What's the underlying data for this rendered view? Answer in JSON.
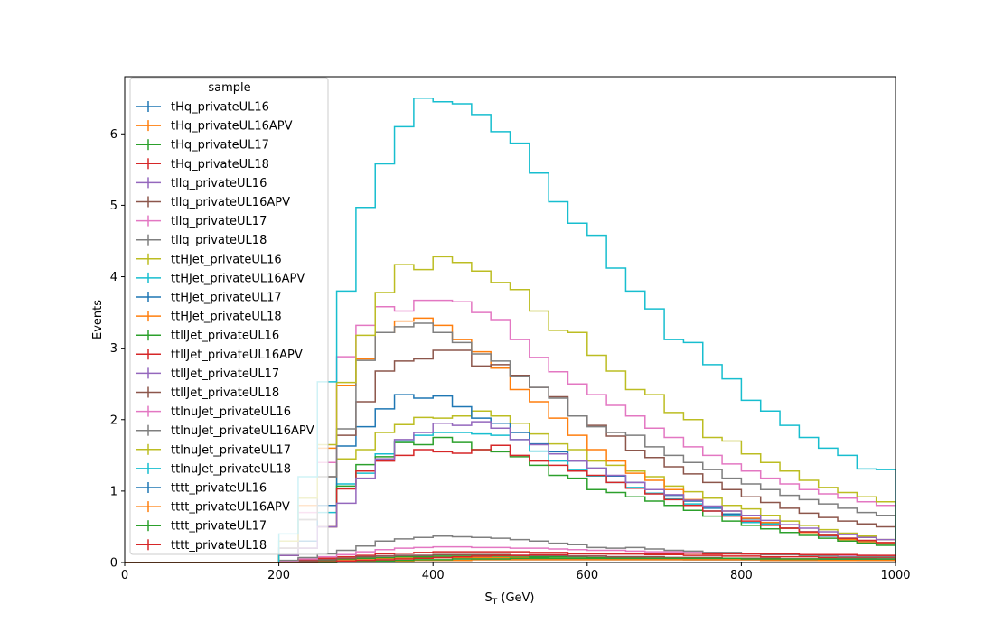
{
  "chart_data": {
    "type": "line",
    "xlabel_main": "S",
    "xlabel_sub": "T",
    "xlabel_rest": " (GeV)",
    "ylabel": "Events",
    "xlim": [
      0,
      1000
    ],
    "ylim": [
      0,
      6.8
    ],
    "xticks": [
      0,
      200,
      400,
      600,
      800,
      1000
    ],
    "yticks": [
      0,
      1,
      2,
      3,
      4,
      5,
      6
    ],
    "grid": false,
    "legend_title": "sample",
    "legend_position": "upper-left",
    "bin_edges": [
      0,
      25,
      50,
      75,
      100,
      125,
      150,
      175,
      200,
      225,
      250,
      275,
      300,
      325,
      350,
      375,
      400,
      425,
      450,
      475,
      500,
      525,
      550,
      575,
      600,
      625,
      650,
      675,
      700,
      725,
      750,
      775,
      800,
      825,
      850,
      875,
      900,
      925,
      950,
      975,
      1000
    ],
    "series": [
      {
        "name": "tHq_privateUL16",
        "color": "#1f77b4",
        "values": [
          0,
          0,
          0,
          0,
          0,
          0,
          0,
          0,
          0.01,
          0.02,
          0.03,
          0.04,
          0.05,
          0.06,
          0.06,
          0.07,
          0.07,
          0.07,
          0.07,
          0.07,
          0.07,
          0.07,
          0.06,
          0.06,
          0.06,
          0.05,
          0.05,
          0.05,
          0.05,
          0.04,
          0.04,
          0.04,
          0.04,
          0.03,
          0.03,
          0.03,
          0.03,
          0.03,
          0.03,
          0.03
        ]
      },
      {
        "name": "tHq_privateUL16APV",
        "color": "#ff7f0e",
        "values": [
          0,
          0,
          0,
          0,
          0,
          0,
          0,
          0,
          0.01,
          0.02,
          0.03,
          0.04,
          0.05,
          0.06,
          0.06,
          0.07,
          0.07,
          0.07,
          0.07,
          0.07,
          0.07,
          0.06,
          0.06,
          0.06,
          0.06,
          0.05,
          0.05,
          0.05,
          0.05,
          0.04,
          0.04,
          0.04,
          0.04,
          0.03,
          0.03,
          0.03,
          0.03,
          0.03,
          0.03,
          0.03
        ]
      },
      {
        "name": "tHq_privateUL17",
        "color": "#2ca02c",
        "values": [
          0,
          0,
          0,
          0,
          0,
          0,
          0,
          0,
          0.01,
          0.02,
          0.03,
          0.05,
          0.06,
          0.07,
          0.08,
          0.08,
          0.09,
          0.09,
          0.09,
          0.09,
          0.09,
          0.08,
          0.08,
          0.08,
          0.07,
          0.07,
          0.07,
          0.06,
          0.06,
          0.06,
          0.05,
          0.05,
          0.05,
          0.05,
          0.04,
          0.04,
          0.04,
          0.04,
          0.04,
          0.04
        ]
      },
      {
        "name": "tHq_privateUL18",
        "color": "#d62728",
        "values": [
          0,
          0,
          0,
          0,
          0,
          0,
          0,
          0,
          0.02,
          0.04,
          0.06,
          0.08,
          0.1,
          0.12,
          0.13,
          0.14,
          0.15,
          0.15,
          0.15,
          0.15,
          0.15,
          0.14,
          0.14,
          0.13,
          0.13,
          0.12,
          0.12,
          0.11,
          0.11,
          0.1,
          0.1,
          0.09,
          0.09,
          0.08,
          0.08,
          0.08,
          0.07,
          0.07,
          0.07,
          0.07
        ]
      },
      {
        "name": "tllq_privateUL16",
        "color": "#9467bd",
        "values": [
          0,
          0,
          0,
          0,
          0,
          0,
          0,
          0,
          0.01,
          0.02,
          0.04,
          0.06,
          0.08,
          0.09,
          0.1,
          0.1,
          0.11,
          0.11,
          0.11,
          0.11,
          0.1,
          0.1,
          0.1,
          0.09,
          0.09,
          0.08,
          0.08,
          0.08,
          0.07,
          0.07,
          0.07,
          0.06,
          0.06,
          0.06,
          0.05,
          0.05,
          0.05,
          0.05,
          0.05,
          0.05
        ]
      },
      {
        "name": "tllq_privateUL16APV",
        "color": "#8c564b",
        "values": [
          0,
          0,
          0,
          0,
          0,
          0,
          0,
          0,
          0.01,
          0.02,
          0.04,
          0.06,
          0.08,
          0.09,
          0.1,
          0.1,
          0.11,
          0.11,
          0.11,
          0.11,
          0.1,
          0.1,
          0.1,
          0.09,
          0.09,
          0.08,
          0.08,
          0.08,
          0.07,
          0.07,
          0.07,
          0.06,
          0.06,
          0.06,
          0.05,
          0.05,
          0.05,
          0.05,
          0.05,
          0.04
        ]
      },
      {
        "name": "tllq_privateUL17",
        "color": "#e377c2",
        "values": [
          0,
          0,
          0,
          0,
          0,
          0,
          0,
          0,
          0.02,
          0.05,
          0.08,
          0.11,
          0.15,
          0.18,
          0.2,
          0.21,
          0.22,
          0.22,
          0.21,
          0.21,
          0.2,
          0.2,
          0.19,
          0.18,
          0.17,
          0.17,
          0.16,
          0.15,
          0.15,
          0.14,
          0.14,
          0.13,
          0.12,
          0.12,
          0.11,
          0.11,
          0.1,
          0.1,
          0.1,
          0.09
        ]
      },
      {
        "name": "tllq_privateUL18",
        "color": "#7f7f7f",
        "values": [
          0,
          0,
          0,
          0,
          0,
          0,
          0,
          0,
          0.03,
          0.07,
          0.12,
          0.17,
          0.23,
          0.3,
          0.33,
          0.35,
          0.37,
          0.36,
          0.35,
          0.34,
          0.32,
          0.3,
          0.27,
          0.25,
          0.21,
          0.2,
          0.21,
          0.19,
          0.17,
          0.16,
          0.14,
          0.14,
          0.12,
          0.11,
          0.11,
          0.1,
          0.09,
          0.08,
          0.08,
          0.08
        ]
      },
      {
        "name": "ttHJet_privateUL16",
        "color": "#bcbd22",
        "values": [
          0,
          0,
          0,
          0,
          0,
          0,
          0,
          0,
          0.1,
          0.3,
          0.8,
          1.45,
          1.58,
          1.82,
          1.93,
          2.03,
          2.02,
          2.05,
          2.12,
          2.05,
          1.95,
          1.8,
          1.66,
          1.58,
          1.42,
          1.36,
          1.28,
          1.2,
          1.07,
          0.99,
          0.9,
          0.8,
          0.75,
          0.66,
          0.58,
          0.52,
          0.46,
          0.41,
          0.37,
          0.32
        ]
      },
      {
        "name": "ttHJet_privateUL16APV",
        "color": "#17becf",
        "values": [
          0,
          0,
          0,
          0,
          0,
          0,
          0,
          0,
          0.1,
          0.3,
          0.7,
          1.1,
          1.25,
          1.52,
          1.7,
          1.78,
          1.82,
          1.82,
          1.8,
          1.78,
          1.72,
          1.56,
          1.42,
          1.3,
          1.21,
          1.12,
          1.05,
          0.97,
          0.89,
          0.82,
          0.72,
          0.66,
          0.56,
          0.54,
          0.48,
          0.43,
          0.38,
          0.34,
          0.3,
          0.26
        ]
      },
      {
        "name": "ttHJet_privateUL17",
        "color": "#1f77b4",
        "values": [
          0,
          0,
          0,
          0,
          0,
          0,
          0,
          0,
          0.1,
          0.3,
          0.8,
          1.63,
          1.9,
          2.15,
          2.35,
          2.3,
          2.33,
          2.18,
          2.02,
          1.95,
          1.82,
          1.66,
          1.55,
          1.42,
          1.32,
          1.21,
          1.12,
          1.02,
          0.94,
          0.86,
          0.76,
          0.68,
          0.61,
          0.56,
          0.48,
          0.42,
          0.37,
          0.33,
          0.29,
          0.26
        ]
      },
      {
        "name": "ttHJet_privateUL18",
        "color": "#ff7f0e",
        "values": [
          0,
          0,
          0,
          0,
          0,
          0,
          0,
          0,
          0.2,
          0.8,
          1.6,
          2.48,
          2.85,
          3.22,
          3.38,
          3.42,
          3.32,
          3.12,
          2.95,
          2.72,
          2.42,
          2.25,
          2.02,
          1.78,
          1.58,
          1.42,
          1.25,
          1.15,
          1.02,
          0.88,
          0.78,
          0.72,
          0.62,
          0.56,
          0.48,
          0.42,
          0.38,
          0.32,
          0.29,
          0.26
        ]
      },
      {
        "name": "ttllJet_privateUL16",
        "color": "#2ca02c",
        "values": [
          0,
          0,
          0,
          0,
          0,
          0,
          0,
          0,
          0.1,
          0.2,
          0.5,
          1.07,
          1.37,
          1.48,
          1.68,
          1.65,
          1.75,
          1.68,
          1.58,
          1.55,
          1.48,
          1.36,
          1.22,
          1.18,
          1.02,
          0.98,
          0.92,
          0.86,
          0.8,
          0.73,
          0.65,
          0.58,
          0.52,
          0.47,
          0.42,
          0.38,
          0.34,
          0.3,
          0.27,
          0.24
        ]
      },
      {
        "name": "ttllJet_privateUL16APV",
        "color": "#d62728",
        "values": [
          0,
          0,
          0,
          0,
          0,
          0,
          0,
          0,
          0.1,
          0.2,
          0.5,
          1.03,
          1.28,
          1.42,
          1.5,
          1.58,
          1.55,
          1.53,
          1.58,
          1.64,
          1.5,
          1.42,
          1.36,
          1.28,
          1.22,
          1.12,
          1.04,
          0.96,
          0.88,
          0.8,
          0.72,
          0.65,
          0.58,
          0.52,
          0.48,
          0.43,
          0.38,
          0.34,
          0.31,
          0.28
        ]
      },
      {
        "name": "ttllJet_privateUL17",
        "color": "#9467bd",
        "values": [
          0,
          0,
          0,
          0,
          0,
          0,
          0,
          0,
          0.1,
          0.2,
          0.5,
          0.83,
          1.18,
          1.45,
          1.72,
          1.82,
          1.95,
          1.92,
          1.97,
          1.88,
          1.72,
          1.65,
          1.52,
          1.42,
          1.32,
          1.22,
          1.12,
          1.02,
          0.95,
          0.87,
          0.79,
          0.72,
          0.66,
          0.59,
          0.53,
          0.48,
          0.43,
          0.39,
          0.35,
          0.32
        ]
      },
      {
        "name": "ttllJet_privateUL18",
        "color": "#8c564b",
        "values": [
          0,
          0,
          0,
          0,
          0,
          0,
          0,
          0,
          0.2,
          0.6,
          1.2,
          1.78,
          2.25,
          2.68,
          2.82,
          2.85,
          2.97,
          2.97,
          2.75,
          2.77,
          2.62,
          2.45,
          2.32,
          2.05,
          1.92,
          1.77,
          1.57,
          1.47,
          1.34,
          1.24,
          1.12,
          1.02,
          0.92,
          0.84,
          0.76,
          0.69,
          0.63,
          0.58,
          0.54,
          0.5
        ]
      },
      {
        "name": "ttlnuJet_privateUL16",
        "color": "#e377c2",
        "values": [
          0,
          0,
          0,
          0,
          0,
          0,
          0,
          0,
          0.2,
          0.7,
          1.4,
          2.88,
          3.32,
          3.58,
          3.52,
          3.67,
          3.67,
          3.65,
          3.5,
          3.4,
          3.12,
          2.87,
          2.67,
          2.5,
          2.35,
          2.2,
          2.05,
          1.88,
          1.75,
          1.62,
          1.5,
          1.38,
          1.28,
          1.18,
          1.1,
          1.02,
          0.96,
          0.9,
          0.85,
          0.8
        ]
      },
      {
        "name": "ttlnuJet_privateUL16APV",
        "color": "#7f7f7f",
        "values": [
          0,
          0,
          0,
          0,
          0,
          0,
          0,
          0,
          0.2,
          0.6,
          1.2,
          1.87,
          2.83,
          3.22,
          3.3,
          3.35,
          3.22,
          3.08,
          2.92,
          2.82,
          2.6,
          2.45,
          2.3,
          2.05,
          1.9,
          1.82,
          1.78,
          1.62,
          1.5,
          1.4,
          1.3,
          1.18,
          1.1,
          1.02,
          0.94,
          0.88,
          0.82,
          0.76,
          0.7,
          0.66
        ]
      },
      {
        "name": "ttlnuJet_privateUL17",
        "color": "#bcbd22",
        "values": [
          0,
          0,
          0,
          0,
          0,
          0,
          0,
          0,
          0.3,
          0.9,
          1.65,
          2.52,
          3.18,
          3.78,
          4.17,
          4.1,
          4.28,
          4.2,
          4.08,
          3.92,
          3.82,
          3.52,
          3.25,
          3.22,
          2.9,
          2.68,
          2.42,
          2.35,
          2.1,
          2.0,
          1.75,
          1.7,
          1.52,
          1.4,
          1.28,
          1.15,
          1.05,
          0.98,
          0.92,
          0.85
        ]
      },
      {
        "name": "ttlnuJet_privateUL18",
        "color": "#17becf",
        "values": [
          0,
          0,
          0,
          0,
          0,
          0,
          0,
          0,
          0.4,
          1.2,
          2.53,
          3.8,
          4.97,
          5.58,
          6.1,
          6.5,
          6.45,
          6.42,
          6.27,
          6.03,
          5.87,
          5.45,
          5.05,
          4.75,
          4.58,
          4.12,
          3.8,
          3.55,
          3.12,
          3.08,
          2.77,
          2.57,
          2.27,
          2.12,
          1.92,
          1.75,
          1.6,
          1.5,
          1.31,
          1.3
        ]
      },
      {
        "name": "tttt_privateUL16",
        "color": "#1f77b4",
        "values": [
          0,
          0,
          0,
          0,
          0,
          0,
          0,
          0,
          0,
          0,
          0,
          0.01,
          0.01,
          0.02,
          0.02,
          0.03,
          0.03,
          0.03,
          0.04,
          0.04,
          0.04,
          0.04,
          0.04,
          0.04,
          0.04,
          0.04,
          0.04,
          0.04,
          0.04,
          0.04,
          0.04,
          0.04,
          0.04,
          0.04,
          0.04,
          0.04,
          0.04,
          0.04,
          0.03,
          0.03
        ]
      },
      {
        "name": "tttt_privateUL16APV",
        "color": "#ff7f0e",
        "values": [
          0,
          0,
          0,
          0,
          0,
          0,
          0,
          0,
          0,
          0,
          0,
          0.01,
          0.01,
          0.02,
          0.02,
          0.03,
          0.03,
          0.03,
          0.04,
          0.04,
          0.04,
          0.04,
          0.04,
          0.04,
          0.04,
          0.04,
          0.04,
          0.04,
          0.04,
          0.04,
          0.04,
          0.04,
          0.04,
          0.04,
          0.04,
          0.04,
          0.03,
          0.03,
          0.03,
          0.03
        ]
      },
      {
        "name": "tttt_privateUL17",
        "color": "#2ca02c",
        "values": [
          0,
          0,
          0,
          0,
          0,
          0,
          0,
          0,
          0,
          0,
          0,
          0.01,
          0.02,
          0.02,
          0.03,
          0.04,
          0.04,
          0.05,
          0.05,
          0.05,
          0.06,
          0.06,
          0.06,
          0.06,
          0.06,
          0.06,
          0.06,
          0.06,
          0.06,
          0.06,
          0.06,
          0.06,
          0.05,
          0.05,
          0.05,
          0.05,
          0.05,
          0.05,
          0.05,
          0.05
        ]
      },
      {
        "name": "tttt_privateUL18",
        "color": "#d62728",
        "values": [
          0,
          0,
          0,
          0,
          0,
          0,
          0,
          0,
          0,
          0,
          0.01,
          0.02,
          0.03,
          0.04,
          0.05,
          0.06,
          0.07,
          0.08,
          0.09,
          0.1,
          0.1,
          0.11,
          0.11,
          0.12,
          0.12,
          0.12,
          0.12,
          0.12,
          0.13,
          0.13,
          0.12,
          0.12,
          0.12,
          0.12,
          0.12,
          0.11,
          0.11,
          0.11,
          0.1,
          0.1
        ]
      }
    ]
  }
}
